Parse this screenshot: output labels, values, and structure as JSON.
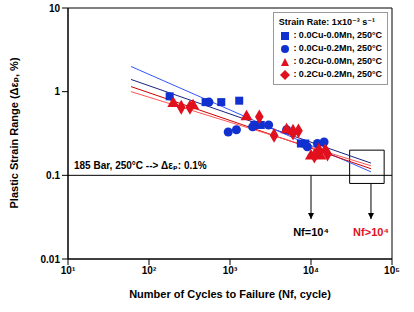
{
  "chart_data": {
    "type": "scatter",
    "log": true,
    "grid": false,
    "legend": "upper right",
    "legend_title": "Strain Rate: 1x10⁻³ s⁻¹",
    "x_label": "Number of Cycles to Failure (Nf, cycle)",
    "y_label": "Plastic Strain Range (Δεₚ, %)",
    "xlim": [
      10,
      100000
    ],
    "ylim": [
      0.01,
      10
    ],
    "xticks": [
      {
        "value": 10,
        "label": "10¹"
      },
      {
        "value": 100,
        "label": "10²"
      },
      {
        "value": 1000,
        "label": "10³"
      },
      {
        "value": 10000,
        "label": "10⁴"
      },
      {
        "value": 100000,
        "label": "10⁵"
      }
    ],
    "yticks": [
      0.01,
      0.1,
      1,
      10
    ],
    "series": [
      {
        "name": ": 0.0Cu-0.0Mn, 250°C",
        "color": "#1030d0",
        "marker": "square",
        "x": [
          180,
          500,
          780,
          1300,
          2000,
          2400,
          7500,
          8500
        ],
        "values": [
          0.88,
          0.75,
          0.75,
          0.78,
          0.4,
          0.4,
          0.24,
          0.24
        ]
      },
      {
        "name": ": 0.0Cu-0.2Mn, 250°C",
        "color": "#1030d0",
        "marker": "circle",
        "x": [
          550,
          950,
          1200,
          1900,
          3000,
          5000,
          9000,
          12000,
          14500
        ],
        "values": [
          0.75,
          0.33,
          0.35,
          0.38,
          0.4,
          0.35,
          0.22,
          0.24,
          0.25
        ]
      },
      {
        "name": ": 0.2Cu-0.0Mn, 250°C",
        "color": "#e0101c",
        "marker": "triangle",
        "x": [
          200,
          350,
          1600,
          5000,
          6000,
          10000,
          13000,
          15000
        ],
        "values": [
          0.72,
          0.68,
          0.5,
          0.35,
          0.34,
          0.17,
          0.17,
          0.2
        ]
      },
      {
        "name": ": 0.2Cu-0.2Mn, 250°C",
        "color": "#e0101c",
        "marker": "diamond",
        "x": [
          250,
          320,
          2300,
          3500,
          6000,
          7000,
          11000,
          12500,
          16000
        ],
        "values": [
          0.65,
          0.65,
          0.5,
          0.3,
          0.32,
          0.34,
          0.17,
          0.2,
          0.18
        ]
      }
    ],
    "fits": [
      {
        "color": "#1a237e",
        "x": [
          60,
          55000
        ],
        "values": [
          1.4,
          0.14
        ]
      },
      {
        "color": "#3355ff",
        "x": [
          60,
          55000
        ],
        "values": [
          2.0,
          0.11
        ]
      },
      {
        "color": "#cc0000",
        "x": [
          60,
          55000
        ],
        "values": [
          1.15,
          0.12
        ]
      },
      {
        "color": "#ff5555",
        "x": [
          60,
          55000
        ],
        "values": [
          1.0,
          0.13
        ]
      }
    ],
    "hline": 0.1,
    "annotation": "185 Bar, 250°C --> Δεₚ: 0.1%",
    "box": {
      "x": [
        30000,
        80000
      ],
      "y": [
        0.08,
        0.2
      ]
    },
    "arrows": [
      {
        "x": 10000,
        "from": 0.1,
        "to": 0.03,
        "label": "Nf=10⁴",
        "color": "#000000"
      },
      {
        "x": 55000,
        "from": 0.08,
        "to": 0.03,
        "label": "Nf>10⁴",
        "color": "#e0101c"
      }
    ]
  }
}
